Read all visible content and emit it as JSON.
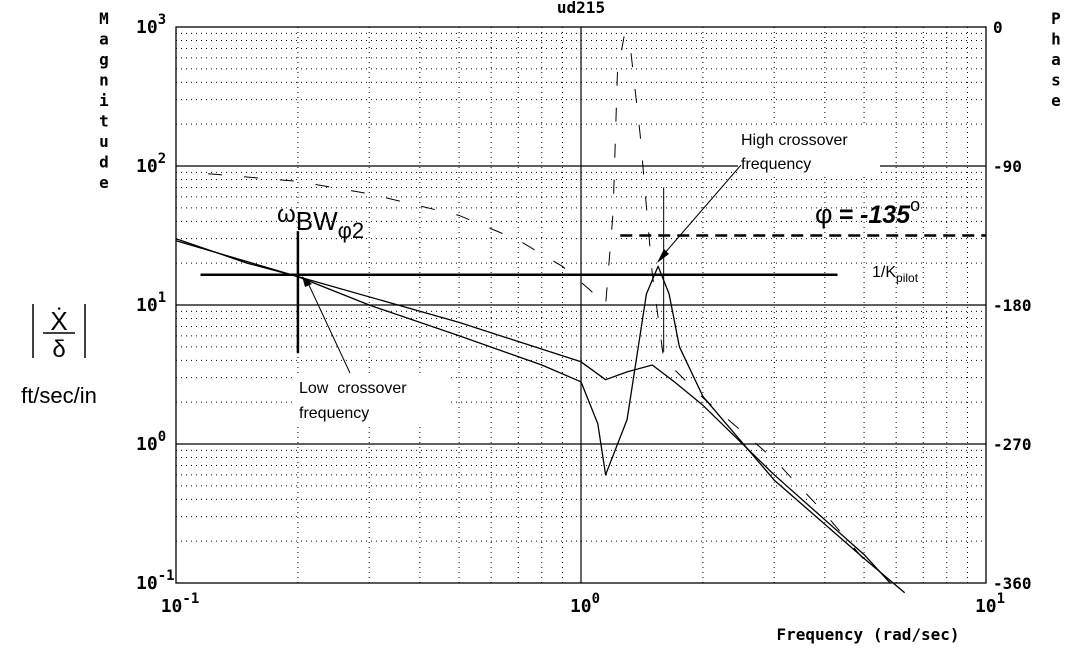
{
  "chart_data": {
    "type": "line",
    "title": "ud215",
    "xlabel": "Frequency (rad/sec)",
    "x_scale": "log",
    "xlim": [
      0.1,
      10
    ],
    "x_ticks": [
      {
        "base": "10",
        "exp": "-1"
      },
      {
        "base": "10",
        "exp": "0"
      },
      {
        "base": "10",
        "exp": "1"
      }
    ],
    "y_left": {
      "label_vertical": "Magnitude",
      "scale": "log",
      "lim": [
        0.1,
        1000
      ],
      "ticks": [
        {
          "base": "10",
          "exp": "3"
        },
        {
          "base": "10",
          "exp": "2"
        },
        {
          "base": "10",
          "exp": "1"
        },
        {
          "base": "10",
          "exp": "0"
        },
        {
          "base": "10",
          "exp": "-1"
        }
      ]
    },
    "y_right": {
      "label_vertical": "Phase",
      "lim": [
        -360,
        0
      ],
      "ticks": [
        "0",
        "-90",
        "-180",
        "-270",
        "-360"
      ]
    },
    "grid": true,
    "ylabel_formula": {
      "numerator": "Ẋ",
      "denominator": "δ",
      "units": "ft/sec/in"
    },
    "series": [
      {
        "style": "solid",
        "axis": "magnitude",
        "x": [
          0.1,
          0.15,
          0.2,
          0.3,
          0.5,
          0.8,
          1.0,
          1.1,
          1.15,
          1.3,
          1.45,
          1.55,
          1.65,
          1.75,
          2.0,
          3.0,
          5.0,
          6.3
        ],
        "y": [
          30,
          20,
          16,
          10,
          6,
          3.7,
          2.8,
          1.4,
          0.6,
          1.5,
          12,
          19,
          12,
          5,
          2.2,
          0.55,
          0.15,
          0.085
        ]
      },
      {
        "style": "solid",
        "axis": "magnitude",
        "x": [
          0.1,
          0.2,
          0.5,
          1.0,
          1.15,
          1.3,
          1.5,
          1.7,
          2.0,
          3.0,
          5.0,
          5.8
        ],
        "y": [
          29,
          16,
          7.5,
          3.9,
          2.9,
          3.3,
          3.7,
          2.8,
          1.9,
          0.6,
          0.16,
          0.1
        ]
      },
      {
        "style": "dashed",
        "axis": "phase",
        "x": [
          0.12,
          0.2,
          0.3,
          0.5,
          0.7,
          0.9,
          1.05,
          1.15,
          1.2,
          1.23,
          1.28,
          1.32,
          1.4,
          1.5,
          1.6,
          2.0,
          3.0,
          4.0,
          5.0
        ],
        "y": [
          -95,
          -100,
          -108,
          -122,
          -138,
          -155,
          -170,
          -180,
          -120,
          -30,
          -5,
          -10,
          -70,
          -160,
          -215,
          -240,
          -280,
          -315,
          -345
        ]
      }
    ],
    "reference_lines": [
      {
        "type": "horizontal",
        "axis": "magnitude",
        "value": 16.5,
        "x_from": 0.115,
        "x_to": 4.3,
        "label": "1/K",
        "label_sub": "pilot"
      },
      {
        "type": "horizontal",
        "axis": "phase",
        "value": -135,
        "style": "dashed",
        "x_from": 1.25,
        "x_to": 10,
        "label_symbol": "φ",
        "label_value": "= -135",
        "label_unit": "o"
      },
      {
        "type": "vertical",
        "x": 0.2,
        "y_from": 34,
        "y_to": 4.5,
        "label": "ω",
        "label_sub": "BW",
        "label_sub2": "φ2"
      },
      {
        "type": "vertical",
        "x": 1.6,
        "y_from": 70,
        "y_to": 4.6
      }
    ],
    "annotations": [
      {
        "lines": [
          "Low  crossover",
          "frequency"
        ],
        "points_to": {
          "x": 0.2,
          "y": 16
        }
      },
      {
        "lines": [
          "High crossover",
          "frequency"
        ],
        "points_to": {
          "x": 1.6,
          "y": 17
        }
      }
    ]
  }
}
